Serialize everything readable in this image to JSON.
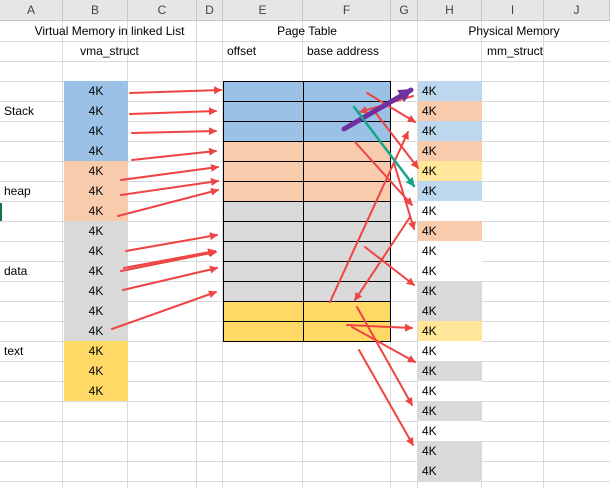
{
  "column_headers": [
    "A",
    "B",
    "C",
    "D",
    "E",
    "F",
    "G",
    "H",
    "I",
    "J"
  ],
  "titles": {
    "virtual_memory": "Virtual Memory in linked List",
    "vma_struct": "vma_struct",
    "page_table": "Page Table",
    "offset": "offset",
    "base_address": "base address",
    "physical_memory": "Physical Memory",
    "mm_struct": "mm_struct"
  },
  "segments": {
    "stack": "Stack",
    "heap": "heap",
    "data": "data",
    "text": "text"
  },
  "page_size_label": "4K",
  "colors": {
    "blue": "#9bc2e6",
    "light_blue": "#bdd7ee",
    "orange": "#f8cbad",
    "gray": "#d9d9d9",
    "yellow": "#ffd966",
    "light_yellow": "#ffe699",
    "white": "#ffffff",
    "arrow_red": "#ee4444",
    "arrow_purple": "#7030a0",
    "arrow_teal": "#17a589"
  },
  "virtual_pages": [
    "blue",
    "blue",
    "blue",
    "blue",
    "orange",
    "orange",
    "orange",
    "gray",
    "gray",
    "gray",
    "gray",
    "gray",
    "gray",
    "yellow",
    "yellow",
    "yellow"
  ],
  "page_table_rows": [
    "blue",
    "blue",
    "blue",
    "orange",
    "orange",
    "orange",
    "gray",
    "gray",
    "gray",
    "gray",
    "gray",
    "yellow",
    "yellow"
  ],
  "physical_pages": [
    "light_blue",
    "orange",
    "light_blue",
    "orange",
    "light_yellow",
    "light_blue",
    "white",
    "orange",
    "white",
    "white",
    "gray",
    "gray",
    "light_yellow",
    "white",
    "gray",
    "white",
    "gray",
    "white",
    "gray",
    "gray"
  ]
}
